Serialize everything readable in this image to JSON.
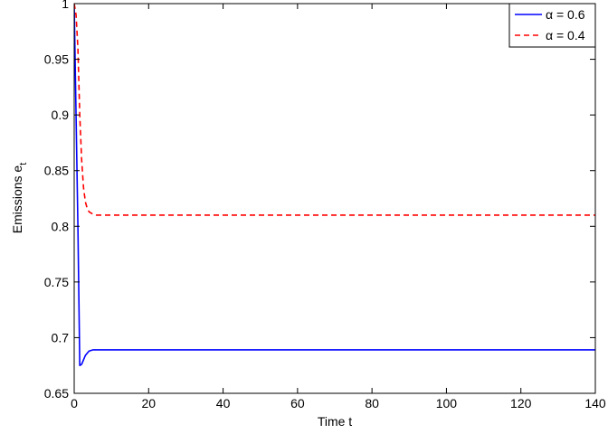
{
  "chart_data": {
    "type": "line",
    "xlabel": "Time t",
    "ylabel": {
      "main": "Emissions e",
      "subscript": "t"
    },
    "xlim": [
      0,
      140
    ],
    "ylim": [
      0.65,
      1
    ],
    "xticks": [
      0,
      20,
      40,
      60,
      80,
      100,
      120,
      140
    ],
    "xtick_labels": [
      "0",
      "20",
      "40",
      "60",
      "80",
      "100",
      "120",
      "140"
    ],
    "yticks": [
      0.65,
      0.7,
      0.75,
      0.8,
      0.85,
      0.9,
      0.95,
      1
    ],
    "ytick_labels": [
      "0.65",
      "0.7",
      "0.75",
      "0.8",
      "0.85",
      "0.9",
      "0.95",
      "1"
    ],
    "grid": false,
    "legend_position": "top-right",
    "series": [
      {
        "name": "α = 0.6",
        "color": "#0000ff",
        "dash": "solid",
        "x": [
          0,
          0.5,
          1,
          1.5,
          2,
          2.5,
          3,
          3.5,
          4,
          5,
          6,
          8,
          10,
          20,
          40,
          60,
          80,
          100,
          120,
          140
        ],
        "y": [
          1.0,
          0.9,
          0.8,
          0.675,
          0.676,
          0.68,
          0.684,
          0.686,
          0.688,
          0.689,
          0.689,
          0.689,
          0.689,
          0.689,
          0.689,
          0.689,
          0.689,
          0.689,
          0.689,
          0.689
        ]
      },
      {
        "name": "α = 0.4",
        "color": "#ff0000",
        "dash": "dashed",
        "x": [
          0,
          0.5,
          1,
          1.5,
          2,
          2.5,
          3,
          3.5,
          4,
          5,
          6,
          7,
          8,
          10,
          20,
          40,
          60,
          80,
          100,
          120,
          140
        ],
        "y": [
          1.0,
          0.99,
          0.96,
          0.9,
          0.86,
          0.835,
          0.822,
          0.816,
          0.813,
          0.811,
          0.81,
          0.81,
          0.81,
          0.81,
          0.81,
          0.81,
          0.81,
          0.81,
          0.81,
          0.81,
          0.81
        ]
      }
    ]
  }
}
